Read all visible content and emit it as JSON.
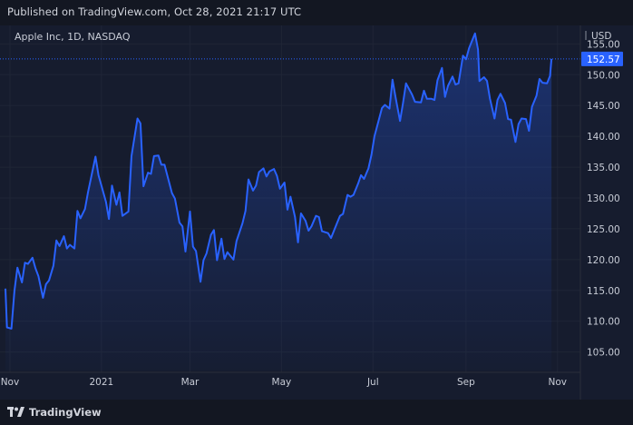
{
  "header": {
    "published": "Published on TradingView.com, Oct 28, 2021 21:17 UTC"
  },
  "symbol": "Apple Inc, 1D, NASDAQ",
  "footer": {
    "brand": "TradingView",
    "logo_icon": "tradingview-logo-icon"
  },
  "colors": {
    "line": "#2962ff",
    "bg": "#161c2e",
    "grid": "#1f2536",
    "price_label": "#2962ff"
  },
  "chart_data": {
    "type": "area",
    "currency": "USD",
    "y_unit": "USD",
    "ylim": [
      102,
      158
    ],
    "yticks": [
      105,
      110,
      115,
      120,
      125,
      130,
      135,
      140,
      145,
      150,
      155
    ],
    "last_price": "152.57",
    "x_start": "2020-10-29",
    "x_end": "2021-11-09",
    "x_ticks": [
      {
        "label": "Nov",
        "date": "2020-11-01"
      },
      {
        "label": "2021",
        "date": "2021-01-01"
      },
      {
        "label": "Mar",
        "date": "2021-03-01"
      },
      {
        "label": "May",
        "date": "2021-05-01"
      },
      {
        "label": "Jul",
        "date": "2021-07-01"
      },
      {
        "label": "Sep",
        "date": "2021-09-01"
      },
      {
        "label": "Nov",
        "date": "2021-11-01"
      }
    ],
    "series": [
      {
        "points": [
          [
            "2020-10-29",
            115.3
          ],
          [
            "2020-10-30",
            109.0
          ],
          [
            "2020-11-02",
            108.8
          ],
          [
            "2020-11-04",
            114.9
          ],
          [
            "2020-11-06",
            118.7
          ],
          [
            "2020-11-09",
            116.3
          ],
          [
            "2020-11-11",
            119.5
          ],
          [
            "2020-11-13",
            119.3
          ],
          [
            "2020-11-16",
            120.3
          ],
          [
            "2020-11-18",
            118.6
          ],
          [
            "2020-11-20",
            117.3
          ],
          [
            "2020-11-23",
            113.8
          ],
          [
            "2020-11-25",
            116.0
          ],
          [
            "2020-11-27",
            116.6
          ],
          [
            "2020-11-30",
            119.0
          ],
          [
            "2020-12-02",
            123.1
          ],
          [
            "2020-12-04",
            122.2
          ],
          [
            "2020-12-07",
            123.8
          ],
          [
            "2020-12-09",
            121.8
          ],
          [
            "2020-12-11",
            122.4
          ],
          [
            "2020-12-14",
            121.8
          ],
          [
            "2020-12-16",
            127.9
          ],
          [
            "2020-12-18",
            126.7
          ],
          [
            "2020-12-21",
            128.2
          ],
          [
            "2020-12-23",
            130.9
          ],
          [
            "2020-12-28",
            136.7
          ],
          [
            "2020-12-30",
            133.7
          ],
          [
            "2021-01-04",
            129.4
          ],
          [
            "2021-01-06",
            126.6
          ],
          [
            "2021-01-08",
            132.0
          ],
          [
            "2021-01-11",
            128.9
          ],
          [
            "2021-01-13",
            130.9
          ],
          [
            "2021-01-15",
            127.1
          ],
          [
            "2021-01-19",
            127.8
          ],
          [
            "2021-01-21",
            136.8
          ],
          [
            "2021-01-25",
            142.9
          ],
          [
            "2021-01-27",
            142.1
          ],
          [
            "2021-01-29",
            131.9
          ],
          [
            "2021-02-01",
            134.1
          ],
          [
            "2021-02-03",
            133.9
          ],
          [
            "2021-02-05",
            136.8
          ],
          [
            "2021-02-08",
            136.9
          ],
          [
            "2021-02-10",
            135.4
          ],
          [
            "2021-02-12",
            135.4
          ],
          [
            "2021-02-17",
            130.8
          ],
          [
            "2021-02-19",
            129.9
          ],
          [
            "2021-02-22",
            126.0
          ],
          [
            "2021-02-24",
            125.4
          ],
          [
            "2021-02-26",
            121.3
          ],
          [
            "2021-03-01",
            127.8
          ],
          [
            "2021-03-03",
            122.1
          ],
          [
            "2021-03-05",
            121.4
          ],
          [
            "2021-03-08",
            116.4
          ],
          [
            "2021-03-10",
            119.9
          ],
          [
            "2021-03-12",
            121.0
          ],
          [
            "2021-03-15",
            124.0
          ],
          [
            "2021-03-17",
            124.8
          ],
          [
            "2021-03-19",
            119.9
          ],
          [
            "2021-03-22",
            123.4
          ],
          [
            "2021-03-24",
            120.1
          ],
          [
            "2021-03-26",
            121.2
          ],
          [
            "2021-03-30",
            120.0
          ],
          [
            "2021-04-01",
            123.0
          ],
          [
            "2021-04-05",
            125.9
          ],
          [
            "2021-04-07",
            127.9
          ],
          [
            "2021-04-09",
            133.0
          ],
          [
            "2021-04-12",
            131.2
          ],
          [
            "2021-04-14",
            132.0
          ],
          [
            "2021-04-16",
            134.2
          ],
          [
            "2021-04-19",
            134.8
          ],
          [
            "2021-04-21",
            133.5
          ],
          [
            "2021-04-23",
            134.3
          ],
          [
            "2021-04-26",
            134.7
          ],
          [
            "2021-04-28",
            133.6
          ],
          [
            "2021-04-30",
            131.5
          ],
          [
            "2021-05-03",
            132.5
          ],
          [
            "2021-05-05",
            128.1
          ],
          [
            "2021-05-07",
            130.2
          ],
          [
            "2021-05-10",
            126.9
          ],
          [
            "2021-05-12",
            122.8
          ],
          [
            "2021-05-14",
            127.5
          ],
          [
            "2021-05-17",
            126.3
          ],
          [
            "2021-05-19",
            124.7
          ],
          [
            "2021-05-21",
            125.4
          ],
          [
            "2021-05-24",
            127.1
          ],
          [
            "2021-05-26",
            126.9
          ],
          [
            "2021-05-28",
            124.6
          ],
          [
            "2021-06-01",
            124.3
          ],
          [
            "2021-06-03",
            123.5
          ],
          [
            "2021-06-07",
            125.9
          ],
          [
            "2021-06-09",
            127.1
          ],
          [
            "2021-06-11",
            127.4
          ],
          [
            "2021-06-14",
            130.5
          ],
          [
            "2021-06-16",
            130.2
          ],
          [
            "2021-06-18",
            130.5
          ],
          [
            "2021-06-21",
            132.3
          ],
          [
            "2021-06-23",
            133.7
          ],
          [
            "2021-06-25",
            133.1
          ],
          [
            "2021-06-28",
            134.8
          ],
          [
            "2021-06-30",
            137.0
          ],
          [
            "2021-07-02",
            140.0
          ],
          [
            "2021-07-07",
            144.6
          ],
          [
            "2021-07-09",
            145.1
          ],
          [
            "2021-07-12",
            144.5
          ],
          [
            "2021-07-14",
            149.2
          ],
          [
            "2021-07-16",
            146.4
          ],
          [
            "2021-07-19",
            142.5
          ],
          [
            "2021-07-21",
            145.4
          ],
          [
            "2021-07-23",
            148.6
          ],
          [
            "2021-07-27",
            146.8
          ],
          [
            "2021-07-29",
            145.6
          ],
          [
            "2021-08-02",
            145.5
          ],
          [
            "2021-08-04",
            147.4
          ],
          [
            "2021-08-06",
            146.1
          ],
          [
            "2021-08-09",
            146.1
          ],
          [
            "2021-08-11",
            145.9
          ],
          [
            "2021-08-13",
            149.1
          ],
          [
            "2021-08-16",
            151.1
          ],
          [
            "2021-08-18",
            146.4
          ],
          [
            "2021-08-20",
            148.2
          ],
          [
            "2021-08-23",
            149.7
          ],
          [
            "2021-08-25",
            148.4
          ],
          [
            "2021-08-27",
            148.6
          ],
          [
            "2021-08-30",
            153.1
          ],
          [
            "2021-09-01",
            152.5
          ],
          [
            "2021-09-03",
            154.3
          ],
          [
            "2021-09-07",
            156.7
          ],
          [
            "2021-09-09",
            154.1
          ],
          [
            "2021-09-10",
            148.97
          ],
          [
            "2021-09-13",
            149.6
          ],
          [
            "2021-09-15",
            149.0
          ],
          [
            "2021-09-17",
            146.1
          ],
          [
            "2021-09-20",
            142.9
          ],
          [
            "2021-09-22",
            145.9
          ],
          [
            "2021-09-24",
            146.9
          ],
          [
            "2021-09-27",
            145.4
          ],
          [
            "2021-09-29",
            142.8
          ],
          [
            "2021-10-01",
            142.7
          ],
          [
            "2021-10-04",
            139.1
          ],
          [
            "2021-10-06",
            142.0
          ],
          [
            "2021-10-08",
            142.9
          ],
          [
            "2021-10-11",
            142.8
          ],
          [
            "2021-10-13",
            140.9
          ],
          [
            "2021-10-15",
            144.8
          ],
          [
            "2021-10-18",
            146.6
          ],
          [
            "2021-10-20",
            149.3
          ],
          [
            "2021-10-22",
            148.7
          ],
          [
            "2021-10-25",
            148.6
          ],
          [
            "2021-10-27",
            149.8
          ],
          [
            "2021-10-28",
            152.57
          ]
        ]
      }
    ]
  }
}
